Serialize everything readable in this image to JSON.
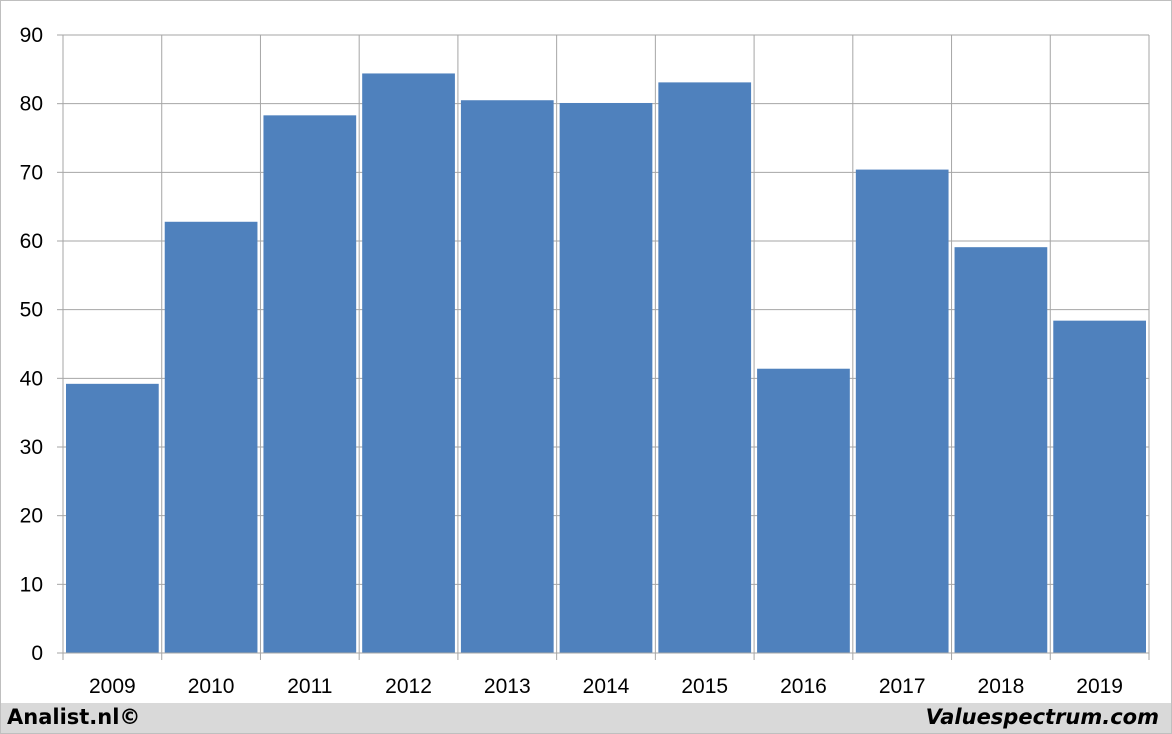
{
  "chart_data": {
    "type": "bar",
    "categories": [
      "2009",
      "2010",
      "2011",
      "2012",
      "2013",
      "2014",
      "2015",
      "2016",
      "2017",
      "2018",
      "2019"
    ],
    "values": [
      39.2,
      62.8,
      78.3,
      84.4,
      80.5,
      80.1,
      83.1,
      41.4,
      70.4,
      59.1,
      48.4
    ],
    "title": "",
    "xlabel": "",
    "ylabel": "",
    "ylim": [
      0,
      90
    ],
    "yticks": [
      0,
      10,
      20,
      30,
      40,
      50,
      60,
      70,
      80,
      90
    ],
    "grid": true,
    "bar_color": "#4f81bd",
    "grid_color": "#a6a6a6"
  },
  "footer": {
    "left_credit": "Analist.nl©",
    "right_credit": "Valuespectrum.com"
  }
}
